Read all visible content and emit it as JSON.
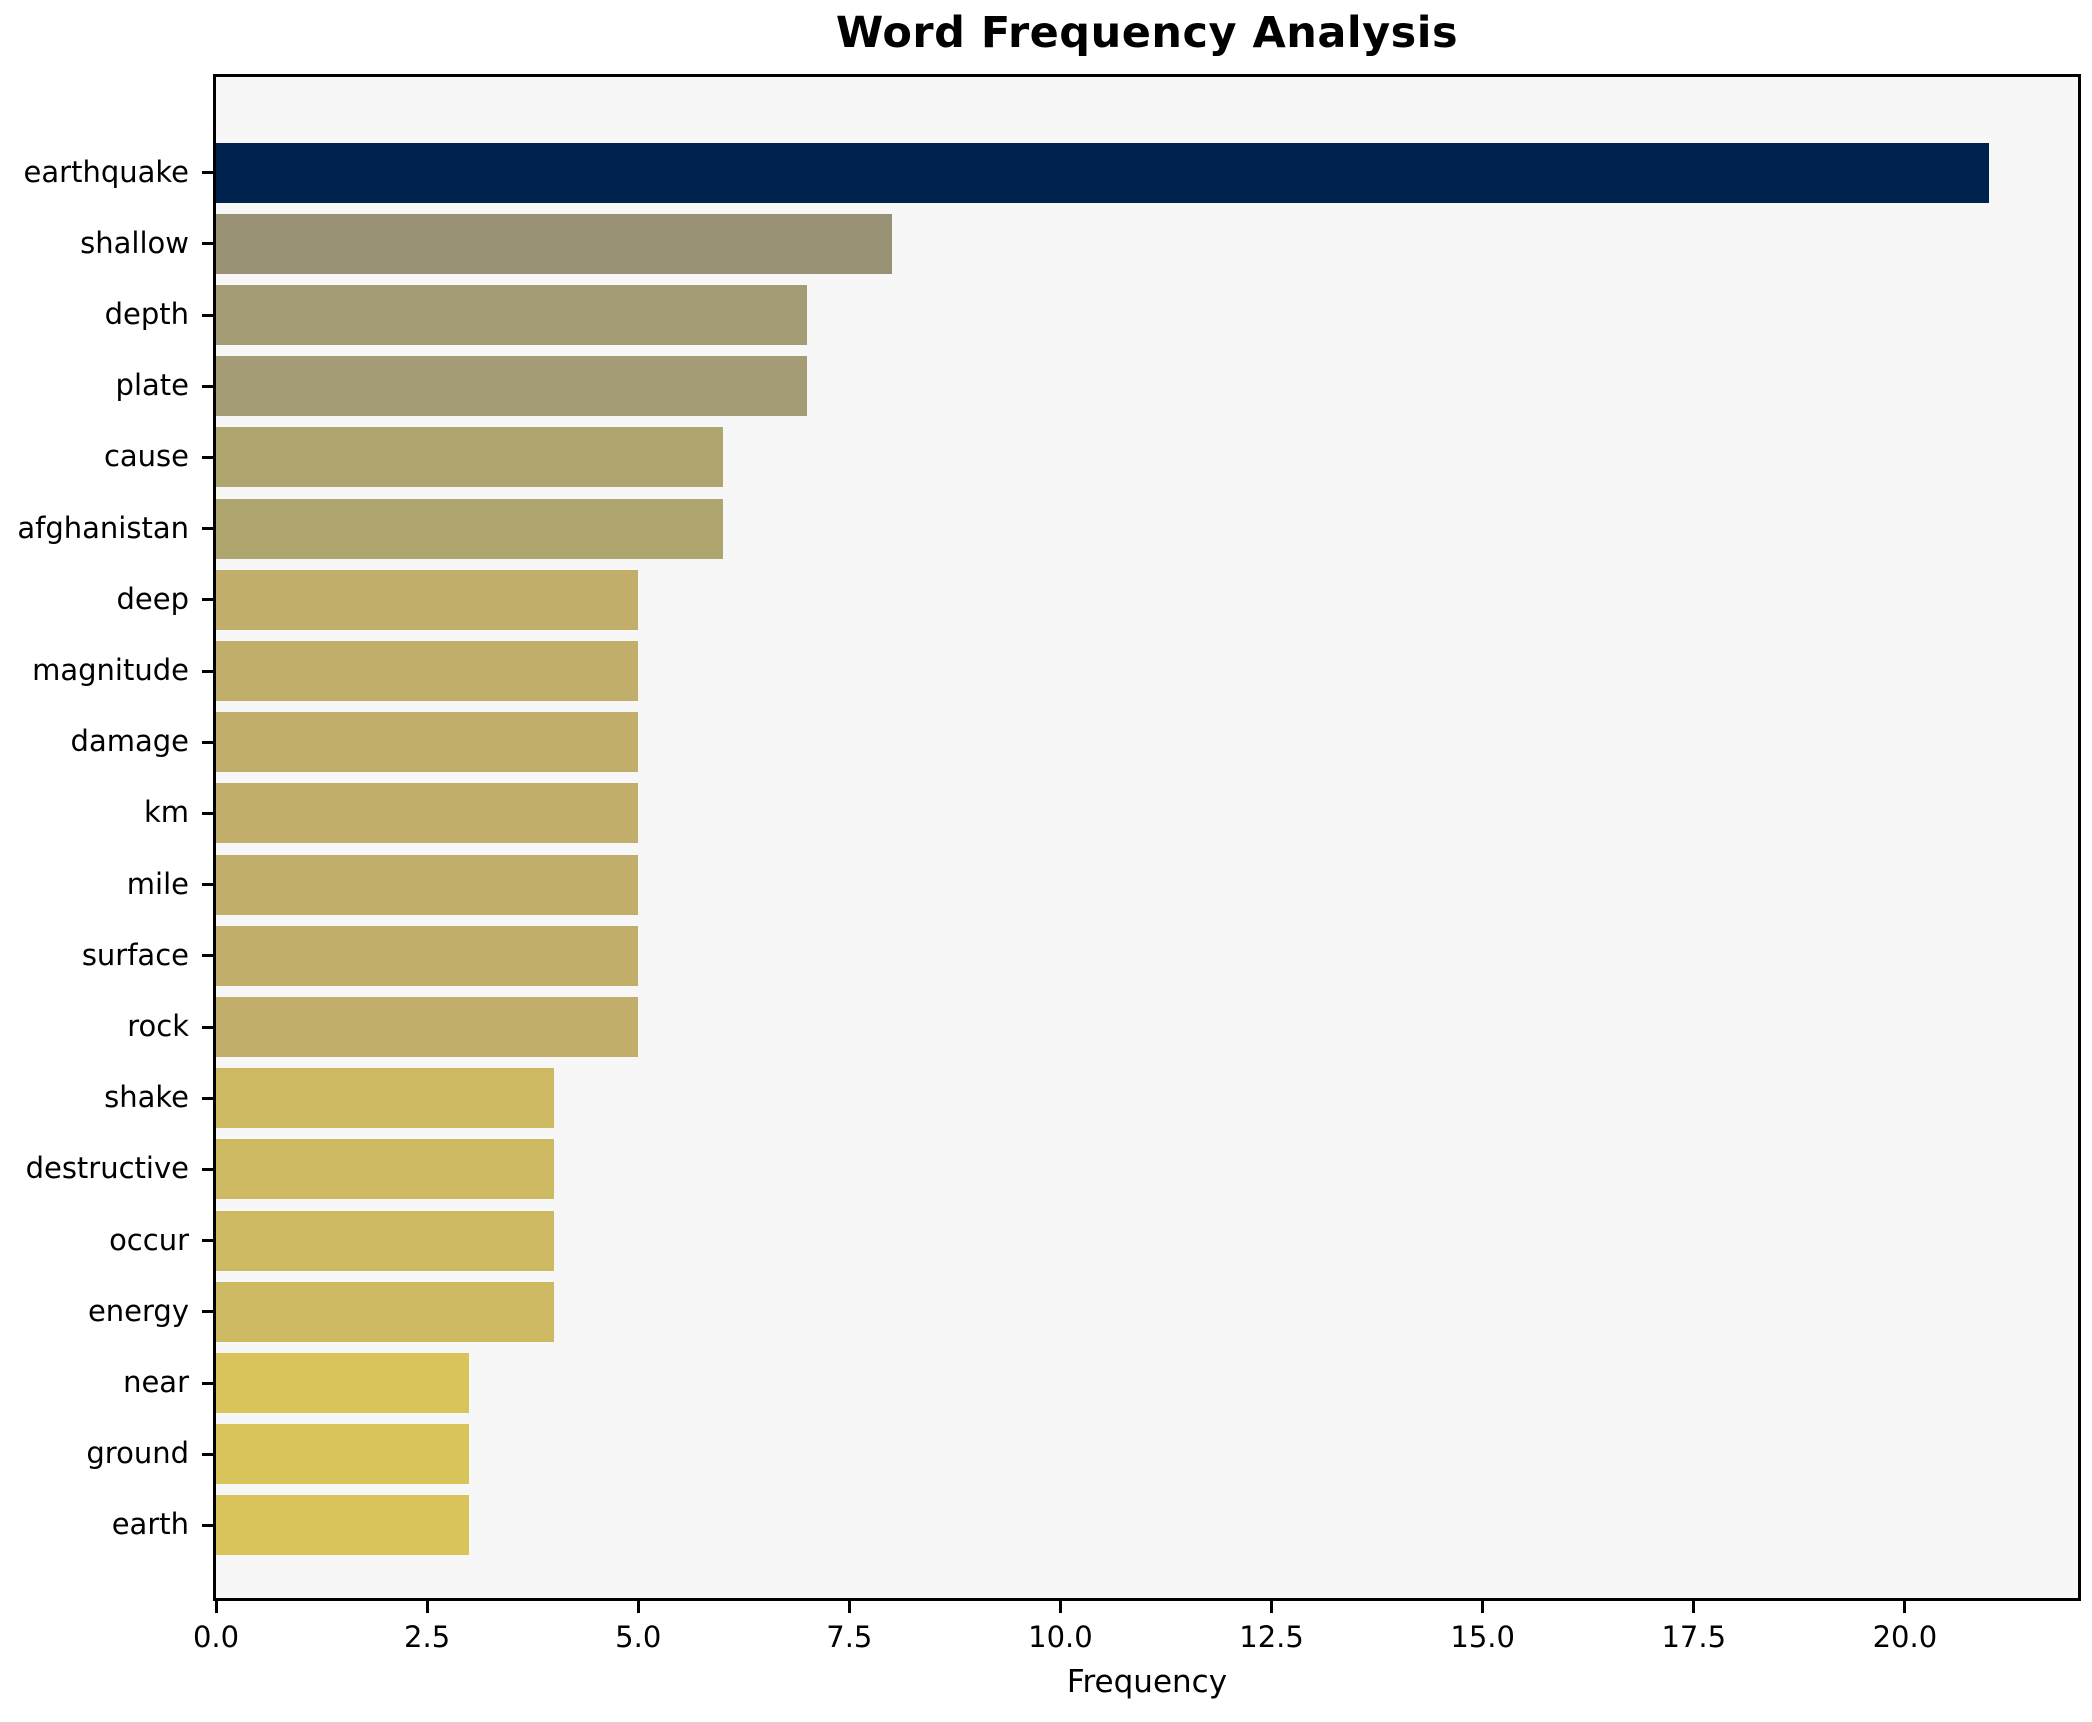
{
  "chart_data": {
    "type": "bar",
    "orientation": "horizontal",
    "title": "Word Frequency Analysis",
    "xlabel": "Frequency",
    "ylabel": "",
    "grid": false,
    "legend_position": "none",
    "xlim": [
      0,
      22.05
    ],
    "x_tick_values": [
      0,
      2.5,
      5,
      7.5,
      10,
      12.5,
      15,
      17.5,
      20
    ],
    "x_tick_labels": [
      "0.0",
      "2.5",
      "5.0",
      "7.5",
      "10.0",
      "12.5",
      "15.0",
      "17.5",
      "20.0"
    ],
    "categories": [
      "earthquake",
      "shallow",
      "depth",
      "plate",
      "cause",
      "afghanistan",
      "deep",
      "magnitude",
      "damage",
      "km",
      "mile",
      "surface",
      "rock",
      "shake",
      "destructive",
      "occur",
      "energy",
      "near",
      "ground",
      "earth"
    ],
    "values": [
      21,
      8,
      7,
      7,
      6,
      6,
      5,
      5,
      5,
      5,
      5,
      5,
      5,
      4,
      4,
      4,
      4,
      3,
      3,
      3
    ],
    "bar_colors": [
      "#00234d",
      "#999174",
      "#a49c74",
      "#a49c74",
      "#afa56f",
      "#afa56f",
      "#c0ae6a",
      "#c0ae6a",
      "#c0ae6a",
      "#c0ae6a",
      "#c0ae6a",
      "#c0ae6a",
      "#c0ae6a",
      "#ccb961",
      "#ccb961",
      "#ccb961",
      "#ccb961",
      "#d9c45c",
      "#d9c45c",
      "#d9c45c"
    ],
    "colors": {
      "plot_background": "#f7f7f7",
      "figure_background": "#ffffff",
      "axis_spine": "#000000",
      "text": "#000000",
      "max_bar": "#00234d",
      "min_bar": "#d9c45c"
    }
  }
}
